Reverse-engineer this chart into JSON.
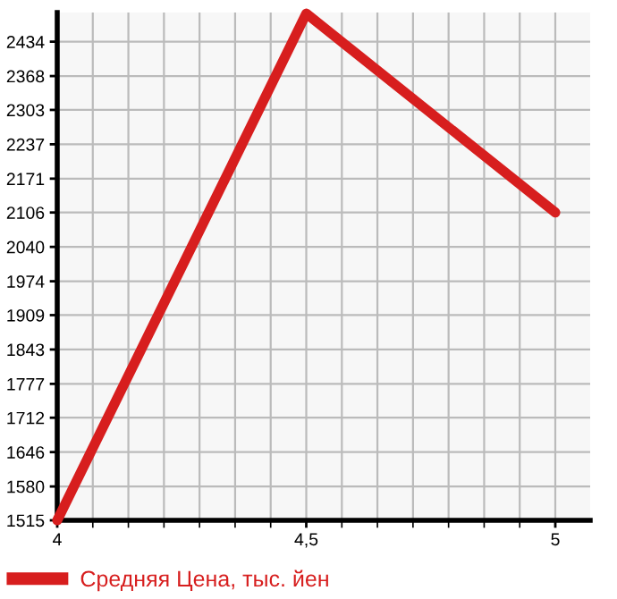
{
  "chart_data": {
    "type": "line",
    "x": [
      4,
      4.5,
      5
    ],
    "series": [
      {
        "name": "Средняя Цена, тыс. йен",
        "color": "#d71e1e",
        "values": [
          1515,
          2488,
          2106
        ]
      }
    ],
    "xlim": [
      4,
      5.07
    ],
    "ylim": [
      1515,
      2490
    ],
    "xticks": [
      4,
      {
        "value": 4.5,
        "label": "4,5"
      },
      5
    ],
    "yticks": [
      1515,
      1580,
      1646,
      1712,
      1777,
      1843,
      1909,
      1974,
      2040,
      2106,
      2171,
      2237,
      2303,
      2368,
      2434
    ],
    "grid": true,
    "legend": "bottom",
    "marker": "none",
    "line_style": "solid"
  }
}
